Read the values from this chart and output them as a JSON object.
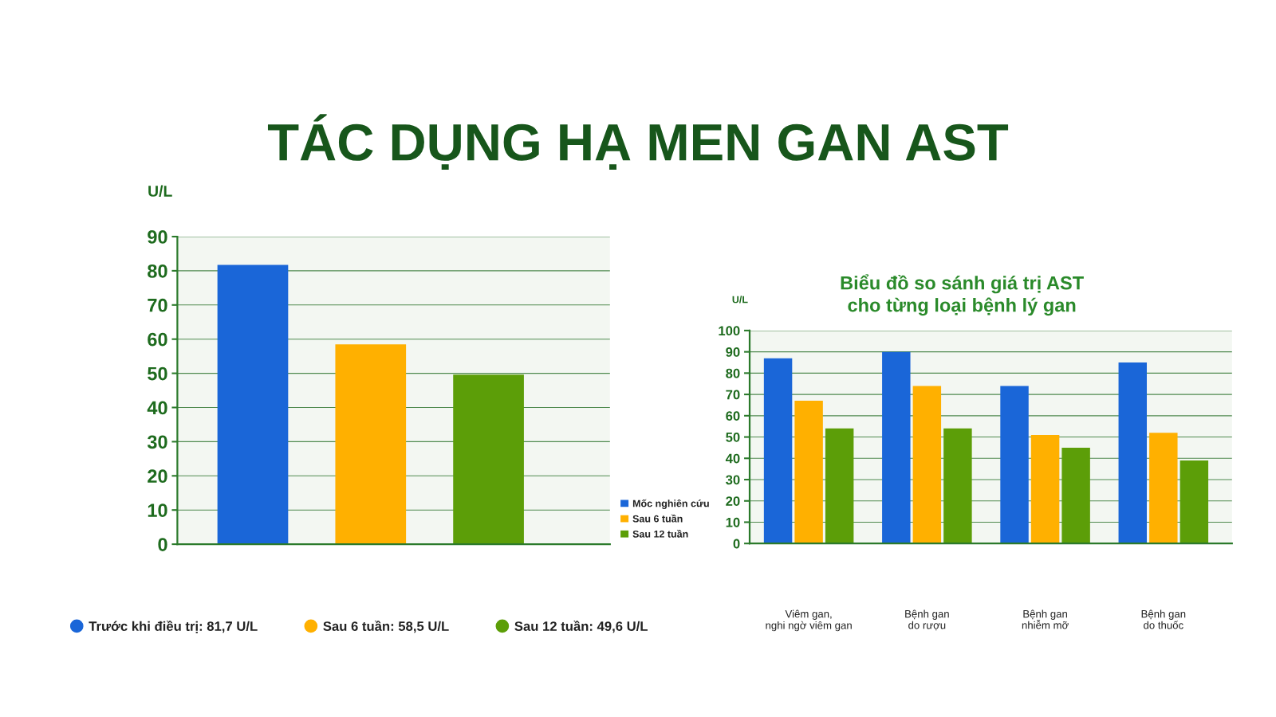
{
  "chart_data": [
    {
      "type": "bar",
      "title": "TÁC DỤNG HẠ MEN GAN AST",
      "ylabel": "U/L",
      "categories": [
        null,
        null,
        null
      ],
      "stacked": true,
      "series": [
        {
          "name": "Trước khi điều trị: 81,7 U/L",
          "color": "#1a66d8",
          "values": [
            81.7,
            null,
            null
          ]
        },
        {
          "name": "Sau 6 tuần: 58,5 U/L",
          "color": "#ffb000",
          "values": [
            null,
            58.5,
            null
          ]
        },
        {
          "name": "Sau 12 tuần: 49,6 U/L",
          "color": "#5c9e08",
          "values": [
            null,
            null,
            49.6
          ]
        }
      ],
      "ylim": [
        0,
        90
      ],
      "yticks": [
        0,
        10,
        20,
        30,
        40,
        50,
        60,
        70,
        80,
        90
      ],
      "grid": "y",
      "legend": "bottom"
    },
    {
      "type": "bar",
      "title": "Biểu đồ so sánh giá trị AST\ncho từng loại bệnh lý gan",
      "ylabel": "U/L",
      "categories": [
        "Viêm gan,\nnghi ngờ viêm gan",
        "Bệnh gan\ndo rượu",
        "Bệnh gan\nnhiễm mỡ",
        "Bệnh gan\ndo thuốc"
      ],
      "series": [
        {
          "name": "Mốc nghiên cứu",
          "color": "#1a66d8",
          "values": [
            87,
            90,
            74,
            85
          ]
        },
        {
          "name": "Sau 6 tuần",
          "color": "#ffb000",
          "values": [
            67,
            74,
            51,
            52
          ]
        },
        {
          "name": "Sau 12 tuần",
          "color": "#5c9e08",
          "values": [
            54,
            54,
            45,
            39
          ]
        }
      ],
      "ylim": [
        0,
        100
      ],
      "yticks": [
        0,
        10,
        20,
        30,
        40,
        50,
        60,
        70,
        80,
        90,
        100
      ],
      "grid": "y",
      "legend": "left"
    }
  ]
}
